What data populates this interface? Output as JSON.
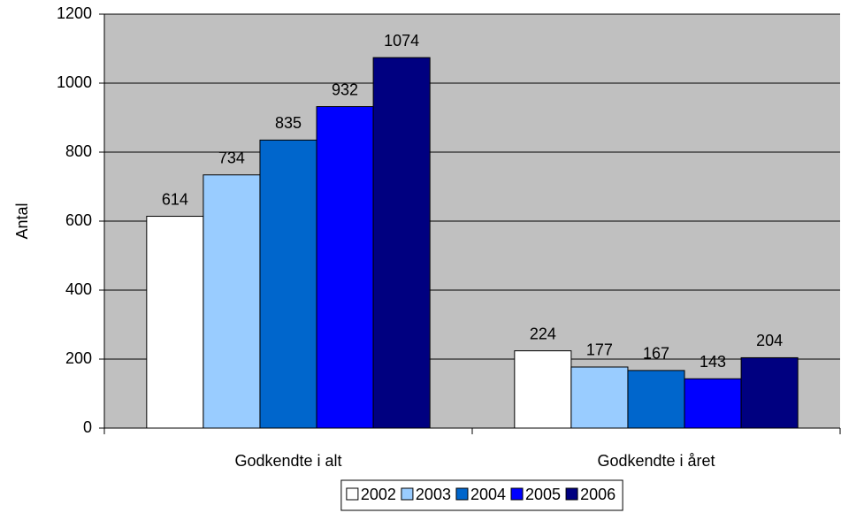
{
  "chart_data": {
    "type": "bar",
    "y_label": "Antal",
    "categories": [
      "Godkendte i alt",
      "Godkendte i året"
    ],
    "series": [
      {
        "name": "2002",
        "color": "#ffffff",
        "values": [
          614,
          224
        ]
      },
      {
        "name": "2003",
        "color": "#99ccff",
        "values": [
          734,
          177
        ]
      },
      {
        "name": "2004",
        "color": "#0066cc",
        "values": [
          835,
          167
        ]
      },
      {
        "name": "2005",
        "color": "#0000ff",
        "values": [
          932,
          143
        ]
      },
      {
        "name": "2006",
        "color": "#000080",
        "values": [
          1074,
          204
        ]
      }
    ],
    "ylim": [
      0,
      1200
    ],
    "yticks": [
      0,
      200,
      400,
      600,
      800,
      1000,
      1200
    ],
    "grid": true,
    "plot_background": "#c0c0c0",
    "legend": "bottom"
  }
}
